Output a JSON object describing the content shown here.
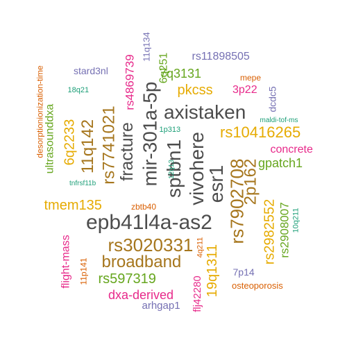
{
  "colors": {
    "dark_gray": "#4d4d4d",
    "olive": "#a6761d",
    "gold": "#e6ab02",
    "green": "#66a61e",
    "magenta": "#e7298a",
    "purple": "#7570b3",
    "orange": "#d95f02",
    "teal": "#1b9e77"
  },
  "words": [
    {
      "text": "epb41l4a-as2",
      "color": "#4d4d4d",
      "size": 30,
      "rotated": false
    },
    {
      "text": "axistaken",
      "color": "#4d4d4d",
      "size": 28,
      "rotated": false
    },
    {
      "text": "mir-301a-5p",
      "color": "#4d4d4d",
      "size": 28,
      "rotated": true
    },
    {
      "text": "sptbn1",
      "color": "#4d4d4d",
      "size": 28,
      "rotated": true
    },
    {
      "text": "vivohere",
      "color": "#4d4d4d",
      "size": 28,
      "rotated": true
    },
    {
      "text": "fracture",
      "color": "#4d4d4d",
      "size": 25,
      "rotated": true
    },
    {
      "text": "esr1",
      "color": "#4d4d4d",
      "size": 28,
      "rotated": true
    },
    {
      "text": "rs3020331",
      "color": "#a6761d",
      "size": 26,
      "rotated": false
    },
    {
      "text": "broadband",
      "color": "#a6761d",
      "size": 24,
      "rotated": false
    },
    {
      "text": "rs7902708",
      "color": "#a6761d",
      "size": 26,
      "rotated": true
    },
    {
      "text": "2p162",
      "color": "#a6761d",
      "size": 24,
      "rotated": true
    },
    {
      "text": "rs7741021",
      "color": "#a6761d",
      "size": 24,
      "rotated": true
    },
    {
      "text": "11q142",
      "color": "#a6761d",
      "size": 24,
      "rotated": true
    },
    {
      "text": "rs10416265",
      "color": "#e6ab02",
      "size": 22,
      "rotated": false
    },
    {
      "text": "tmem135",
      "color": "#e6ab02",
      "size": 20,
      "rotated": false
    },
    {
      "text": "pkcss",
      "color": "#e6ab02",
      "size": 20,
      "rotated": false
    },
    {
      "text": "6q2233",
      "color": "#e6ab02",
      "size": 20,
      "rotated": true
    },
    {
      "text": "19q1311",
      "color": "#e6ab02",
      "size": 20,
      "rotated": true
    },
    {
      "text": "rs2982552",
      "color": "#e6ab02",
      "size": 20,
      "rotated": true
    },
    {
      "text": "rs597319",
      "color": "#66a61e",
      "size": 20,
      "rotated": false
    },
    {
      "text": "gpatch1",
      "color": "#66a61e",
      "size": 18,
      "rotated": false
    },
    {
      "text": "7q3131",
      "color": "#66a61e",
      "size": 18,
      "rotated": false
    },
    {
      "text": "ultrasounddxa",
      "color": "#66a61e",
      "size": 16,
      "rotated": true
    },
    {
      "text": "rs2908007",
      "color": "#66a61e",
      "size": 17,
      "rotated": true
    },
    {
      "text": "6q251",
      "color": "#66a61e",
      "size": 16,
      "rotated": true
    },
    {
      "text": "dxa-derived",
      "color": "#e7298a",
      "size": 18,
      "rotated": false
    },
    {
      "text": "concrete",
      "color": "#e7298a",
      "size": 16,
      "rotated": false
    },
    {
      "text": "3p22",
      "color": "#e7298a",
      "size": 16,
      "rotated": false
    },
    {
      "text": "rs4869739",
      "color": "#e7298a",
      "size": 17,
      "rotated": true
    },
    {
      "text": "flight-mass",
      "color": "#e7298a",
      "size": 16,
      "rotated": true
    },
    {
      "text": "flj42280",
      "color": "#e7298a",
      "size": 15,
      "rotated": true
    },
    {
      "text": "rs11898505",
      "color": "#7570b3",
      "size": 16,
      "rotated": false
    },
    {
      "text": "stard3nl",
      "color": "#7570b3",
      "size": 14,
      "rotated": false
    },
    {
      "text": "7p14",
      "color": "#7570b3",
      "size": 14,
      "rotated": false
    },
    {
      "text": "arhgap1",
      "color": "#7570b3",
      "size": 15,
      "rotated": false
    },
    {
      "text": "dcdc5",
      "color": "#7570b3",
      "size": 14,
      "rotated": true
    },
    {
      "text": "11q134",
      "color": "#7570b3",
      "size": 13,
      "rotated": true
    },
    {
      "text": "osteoporosis",
      "color": "#d95f02",
      "size": 13,
      "rotated": false
    },
    {
      "text": "mepe",
      "color": "#d95f02",
      "size": 12,
      "rotated": false
    },
    {
      "text": "zbtb40",
      "color": "#d95f02",
      "size": 12,
      "rotated": false
    },
    {
      "text": "desorptionionization-time",
      "color": "#d95f02",
      "size": 12,
      "rotated": true
    },
    {
      "text": "11p141",
      "color": "#d95f02",
      "size": 12,
      "rotated": true
    },
    {
      "text": "4q211",
      "color": "#d95f02",
      "size": 11,
      "rotated": true
    },
    {
      "text": "18q21",
      "color": "#1b9e77",
      "size": 11,
      "rotated": false
    },
    {
      "text": "1p313",
      "color": "#1b9e77",
      "size": 11,
      "rotated": false
    },
    {
      "text": "maldi-tof-ms",
      "color": "#1b9e77",
      "size": 10,
      "rotated": false
    },
    {
      "text": "tnfrsf11b",
      "color": "#1b9e77",
      "size": 10,
      "rotated": false
    },
    {
      "text": "12q13",
      "color": "#1b9e77",
      "size": 10,
      "rotated": true
    },
    {
      "text": "10q211",
      "color": "#1b9e77",
      "size": 11,
      "rotated": true
    }
  ]
}
